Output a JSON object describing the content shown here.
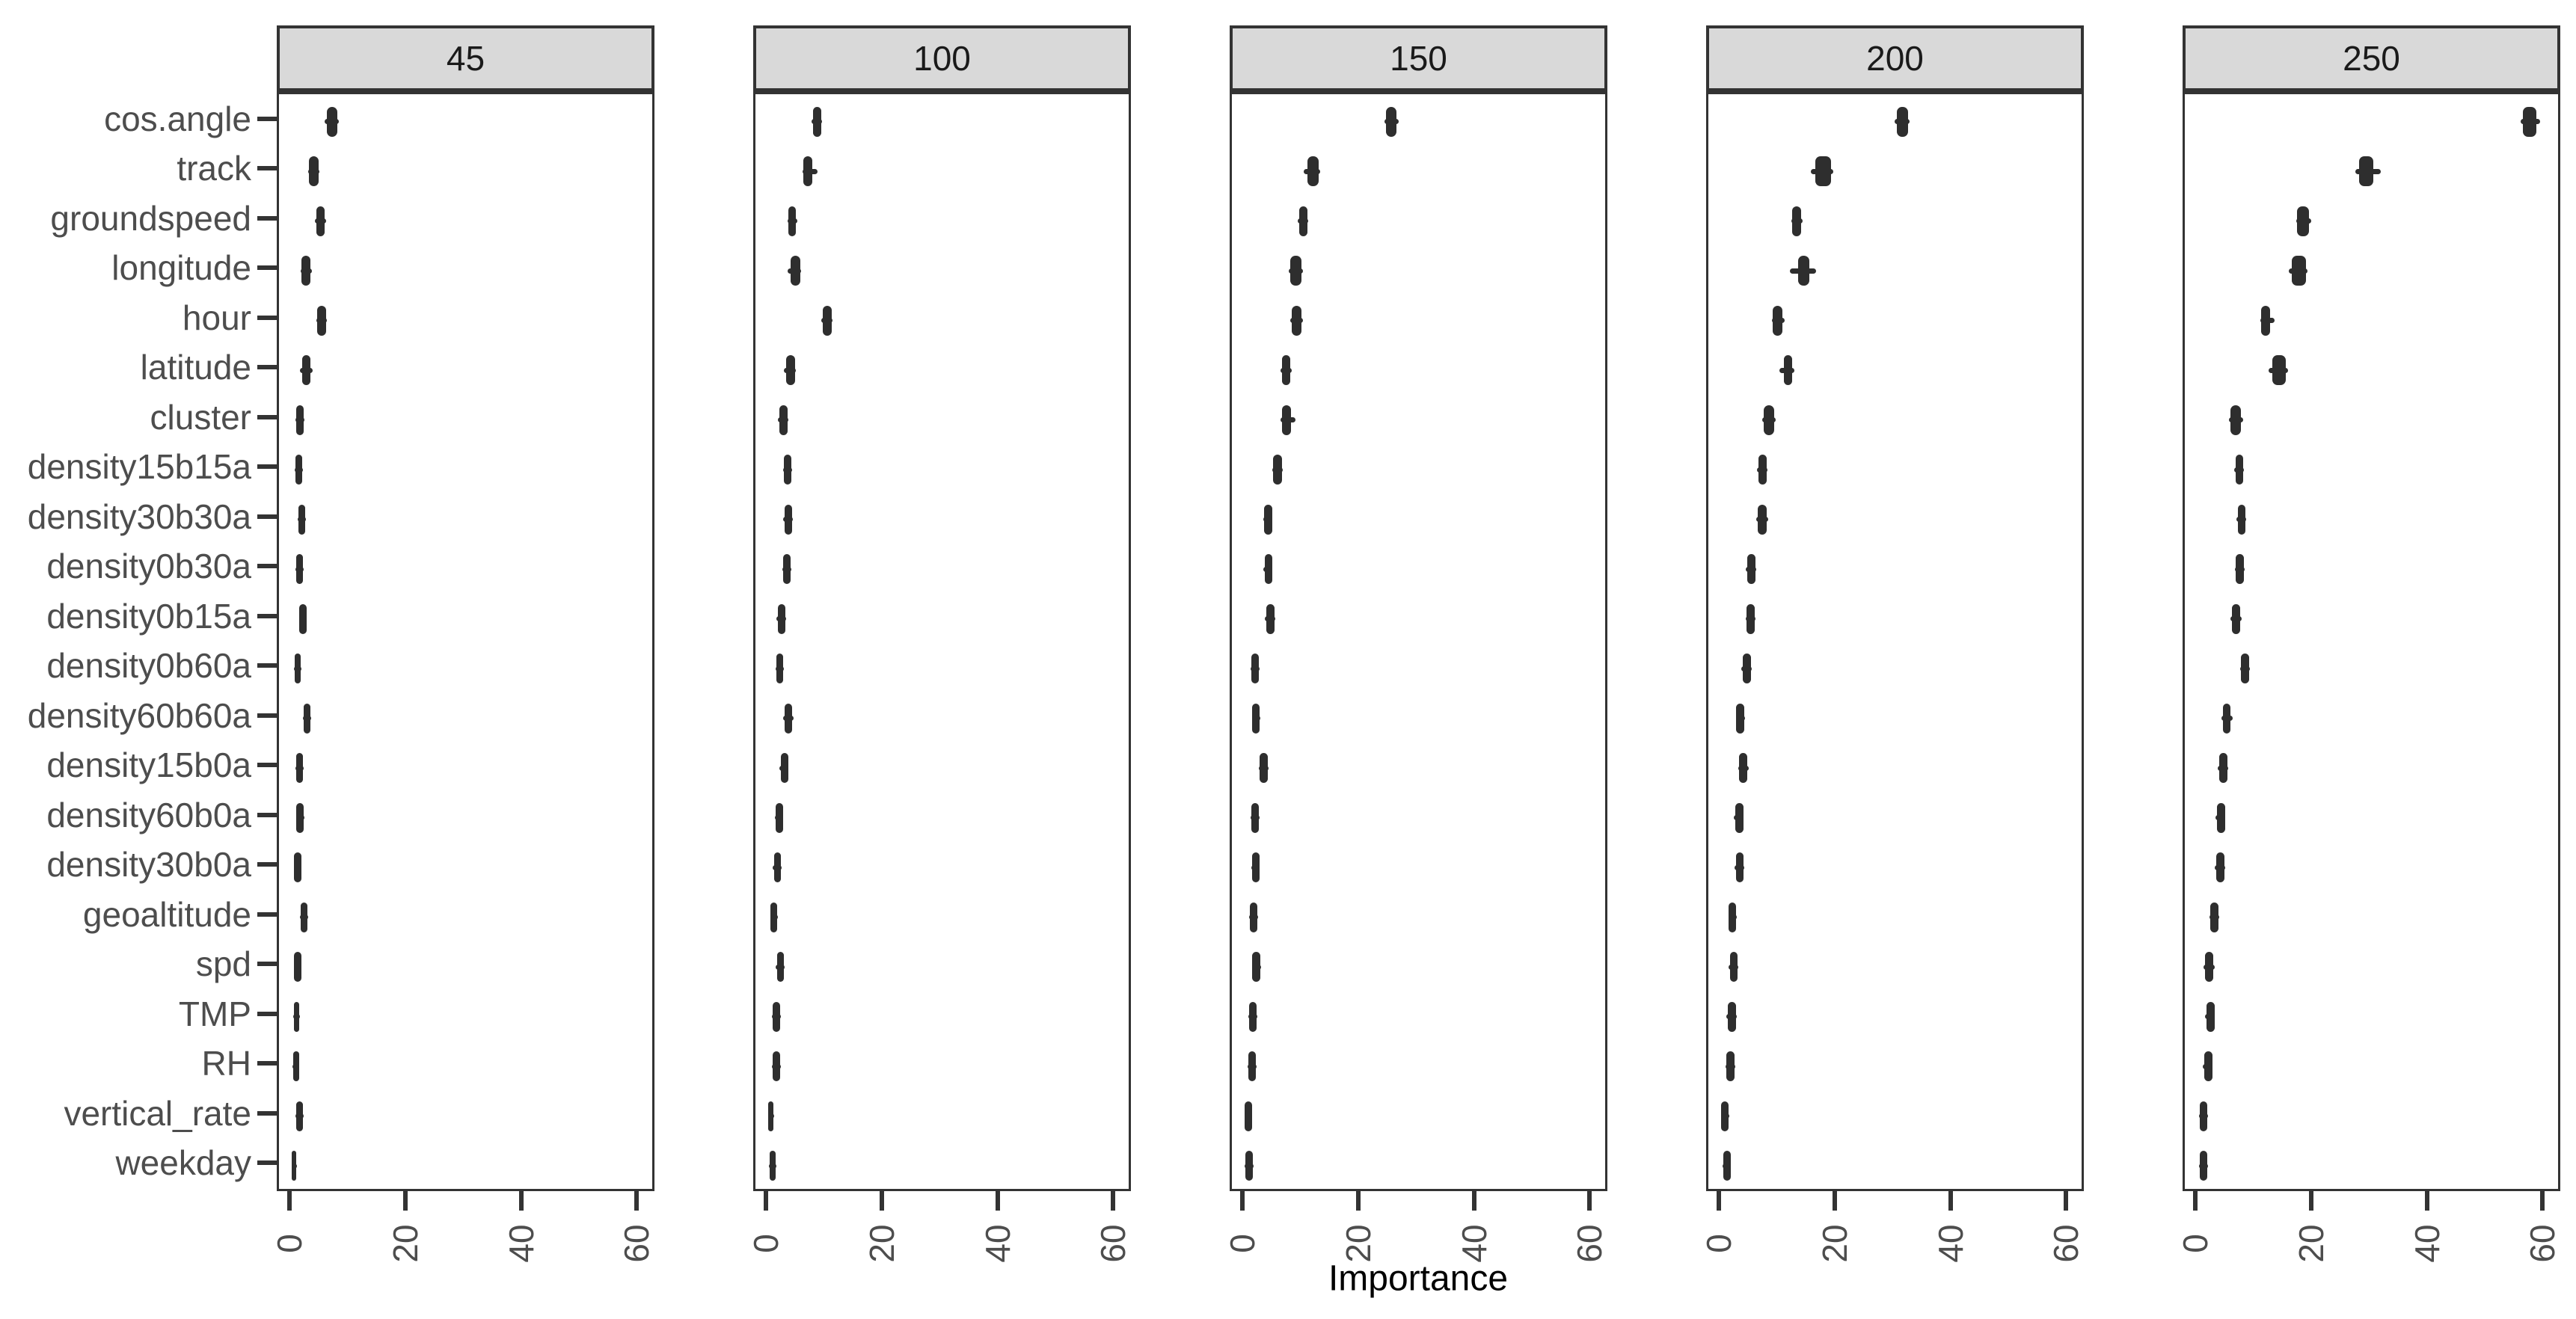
{
  "chart_data": {
    "type": "boxplot",
    "orientation": "horizontal",
    "title": "",
    "xlabel": "Importance",
    "ylabel": "",
    "facet_labels": [
      "45",
      "100",
      "150",
      "200",
      "250"
    ],
    "categories": [
      "cos.angle",
      "track",
      "groundspeed",
      "longitude",
      "hour",
      "latitude",
      "cluster",
      "density15b15a",
      "density30b30a",
      "density0b30a",
      "density0b15a",
      "density0b60a",
      "density60b60a",
      "density15b0a",
      "density60b0a",
      "density30b0a",
      "geoaltitude",
      "spd",
      "TMP",
      "RH",
      "vertical_rate",
      "weekday"
    ],
    "x_tick_labels": [
      "0",
      "20",
      "40",
      "60"
    ],
    "x_tick_values": [
      0,
      20,
      40,
      60
    ],
    "xlim": [
      -2.2,
      63
    ],
    "grid": "off",
    "legend": "none",
    "box_format": "[whisker_low, box_low, box_high, whisker_high]",
    "series": [
      {
        "facet": "45",
        "boxes": [
          [
            5.6,
            6.0,
            7.8,
            8.1
          ],
          [
            2.8,
            3.0,
            4.6,
            4.8
          ],
          [
            4.0,
            4.2,
            5.7,
            5.9
          ],
          [
            1.5,
            1.7,
            3.2,
            3.4
          ],
          [
            4.2,
            4.4,
            5.9,
            6.1
          ],
          [
            1.4,
            1.8,
            3.2,
            3.6
          ],
          [
            0.6,
            0.8,
            2.0,
            2.2
          ],
          [
            0.5,
            0.6,
            1.8,
            1.9
          ],
          [
            1.0,
            1.1,
            2.3,
            2.4
          ],
          [
            0.6,
            0.7,
            1.9,
            2.0
          ],
          [
            1.2,
            1.3,
            2.5,
            2.6
          ],
          [
            0.4,
            0.5,
            1.5,
            1.6
          ],
          [
            1.9,
            2.0,
            3.2,
            3.3
          ],
          [
            0.6,
            0.7,
            1.9,
            2.0
          ],
          [
            0.7,
            0.8,
            2.0,
            2.1
          ],
          [
            0.3,
            0.4,
            1.6,
            1.7
          ],
          [
            1.4,
            1.5,
            2.7,
            2.8
          ],
          [
            0.3,
            0.4,
            1.6,
            1.7
          ],
          [
            0.2,
            0.3,
            1.3,
            1.4
          ],
          [
            0.1,
            0.2,
            1.2,
            1.3
          ],
          [
            0.6,
            0.7,
            1.9,
            2.0
          ],
          [
            0.0,
            0.0,
            0.8,
            0.9
          ]
        ]
      },
      {
        "facet": "100",
        "boxes": [
          [
            7.5,
            7.7,
            9.1,
            9.3
          ],
          [
            5.9,
            6.1,
            7.6,
            8.5
          ],
          [
            3.3,
            3.5,
            4.8,
            5.0
          ],
          [
            3.3,
            3.9,
            5.5,
            5.7
          ],
          [
            9.2,
            9.4,
            10.9,
            11.1
          ],
          [
            2.7,
            3.1,
            4.6,
            4.8
          ],
          [
            1.7,
            1.9,
            3.3,
            3.5
          ],
          [
            2.5,
            2.7,
            4.0,
            4.1
          ],
          [
            2.6,
            2.8,
            4.1,
            4.2
          ],
          [
            2.4,
            2.6,
            3.9,
            4.0
          ],
          [
            1.4,
            1.7,
            2.9,
            3.1
          ],
          [
            1.2,
            1.4,
            2.6,
            2.7
          ],
          [
            2.6,
            2.8,
            4.1,
            4.3
          ],
          [
            1.9,
            2.1,
            3.4,
            3.5
          ],
          [
            1.1,
            1.3,
            2.5,
            2.6
          ],
          [
            0.8,
            1.0,
            2.2,
            2.3
          ],
          [
            0.3,
            0.4,
            1.5,
            1.6
          ],
          [
            1.3,
            1.5,
            2.7,
            2.8
          ],
          [
            0.6,
            0.8,
            2.0,
            2.1
          ],
          [
            0.6,
            0.8,
            2.0,
            2.1
          ],
          [
            0.0,
            0.0,
            0.9,
            1.0
          ],
          [
            0.1,
            0.2,
            1.3,
            1.4
          ]
        ]
      },
      {
        "facet": "150",
        "boxes": [
          [
            24.1,
            24.4,
            26.2,
            26.6
          ],
          [
            10.2,
            10.8,
            12.8,
            13.0
          ],
          [
            9.2,
            9.4,
            10.8,
            11.0
          ],
          [
            7.6,
            7.9,
            9.8,
            10.0
          ],
          [
            7.9,
            8.1,
            9.8,
            10.0
          ],
          [
            6.2,
            6.4,
            7.9,
            8.1
          ],
          [
            6.2,
            6.4,
            8.0,
            8.8
          ],
          [
            4.7,
            4.9,
            6.4,
            6.5
          ],
          [
            3.2,
            3.3,
            4.7,
            4.8
          ],
          [
            3.2,
            3.4,
            4.7,
            4.8
          ],
          [
            3.5,
            3.7,
            5.1,
            5.2
          ],
          [
            1.0,
            1.1,
            2.4,
            2.5
          ],
          [
            1.2,
            1.3,
            2.6,
            2.7
          ],
          [
            2.4,
            2.6,
            4.0,
            4.1
          ],
          [
            1.0,
            1.1,
            2.4,
            2.5
          ],
          [
            1.1,
            1.2,
            2.5,
            2.6
          ],
          [
            0.8,
            0.9,
            2.2,
            2.3
          ],
          [
            1.2,
            1.3,
            2.7,
            2.8
          ],
          [
            0.6,
            0.7,
            2.0,
            2.1
          ],
          [
            0.5,
            0.6,
            1.9,
            2.0
          ],
          [
            0.0,
            0.0,
            1.2,
            1.3
          ],
          [
            0.0,
            0.1,
            1.4,
            1.5
          ]
        ]
      },
      {
        "facet": "200",
        "boxes": [
          [
            30.0,
            30.4,
            32.3,
            32.6
          ],
          [
            15.5,
            16.3,
            19.0,
            19.3
          ],
          [
            12.1,
            12.3,
            13.8,
            14.0
          ],
          [
            11.9,
            13.3,
            15.2,
            16.4
          ],
          [
            8.7,
            8.9,
            10.6,
            11.0
          ],
          [
            10.1,
            10.8,
            12.3,
            12.7
          ],
          [
            7.1,
            7.3,
            9.1,
            9.4
          ],
          [
            6.2,
            6.4,
            7.9,
            8.0
          ],
          [
            6.1,
            6.3,
            7.8,
            8.1
          ],
          [
            4.2,
            4.5,
            5.9,
            6.1
          ],
          [
            4.2,
            4.4,
            5.8,
            5.9
          ],
          [
            3.5,
            3.7,
            5.1,
            5.2
          ],
          [
            2.5,
            2.6,
            4.0,
            4.1
          ],
          [
            2.9,
            3.1,
            4.5,
            4.8
          ],
          [
            2.2,
            2.4,
            3.8,
            3.9
          ],
          [
            2.3,
            2.5,
            3.9,
            4.0
          ],
          [
            1.2,
            1.3,
            2.6,
            2.7
          ],
          [
            1.2,
            1.5,
            2.8,
            3.0
          ],
          [
            0.9,
            1.1,
            2.5,
            2.7
          ],
          [
            0.7,
            0.9,
            2.3,
            2.4
          ],
          [
            0.0,
            0.0,
            1.3,
            1.4
          ],
          [
            0.2,
            0.3,
            1.6,
            1.7
          ]
        ]
      },
      {
        "facet": "250",
        "boxes": [
          [
            55.8,
            56.2,
            58.5,
            59.2
          ],
          [
            27.3,
            27.9,
            30.4,
            31.7
          ],
          [
            17.0,
            17.2,
            19.2,
            19.6
          ],
          [
            15.8,
            16.2,
            18.7,
            19.0
          ],
          [
            10.8,
            11.0,
            12.5,
            13.3
          ],
          [
            12.2,
            12.9,
            15.2,
            15.6
          ],
          [
            5.4,
            5.7,
            7.5,
            7.9
          ],
          [
            6.3,
            6.5,
            7.9,
            8.0
          ],
          [
            6.7,
            6.9,
            8.3,
            8.4
          ],
          [
            6.4,
            6.6,
            8.0,
            8.1
          ],
          [
            5.7,
            5.9,
            7.3,
            7.6
          ],
          [
            7.3,
            7.5,
            8.9,
            9.0
          ],
          [
            4.1,
            4.3,
            5.7,
            6.0
          ],
          [
            3.4,
            3.7,
            5.1,
            5.3
          ],
          [
            3.1,
            3.3,
            4.7,
            4.8
          ],
          [
            3.0,
            3.2,
            4.6,
            4.7
          ],
          [
            2.0,
            2.2,
            3.6,
            3.7
          ],
          [
            1.0,
            1.3,
            2.7,
            2.9
          ],
          [
            1.3,
            1.5,
            2.9,
            3.0
          ],
          [
            0.9,
            1.1,
            2.5,
            2.6
          ],
          [
            0.2,
            0.3,
            1.7,
            1.8
          ],
          [
            0.2,
            0.3,
            1.7,
            1.8
          ]
        ]
      }
    ]
  },
  "style": {
    "box_color": "#2e2e2e",
    "panel_border_color": "#333333",
    "strip_fill": "#d9d9d9",
    "strip_border_color": "#333333",
    "strip_text_color": "#1a1a1a",
    "axis_text_color": "#4d4d4d",
    "axis_title_color": "#000000",
    "tick_color": "#333333",
    "background": "#ffffff"
  }
}
